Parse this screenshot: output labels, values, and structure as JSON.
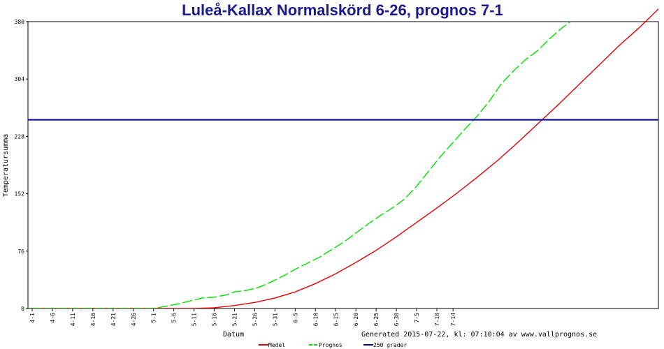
{
  "chart_data": {
    "type": "line",
    "title": "Luleå-Kallax Normalskörd 6-26, prognos 7-1",
    "xlabel": "Datum",
    "ylabel": "Temperatursumma",
    "ylim": [
      0,
      380
    ],
    "y_ticks": [
      "0",
      "76",
      "152",
      "228",
      "304",
      "380"
    ],
    "x_ticks": [
      "4-1",
      "4-6",
      "4-11",
      "4-16",
      "4-21",
      "4-26",
      "5-1",
      "5-6",
      "5-11",
      "5-16",
      "5-21",
      "5-26",
      "5-31",
      "6-5",
      "6-10",
      "6-15",
      "6-20",
      "6-25",
      "6-30",
      "7-5",
      "7-10",
      "7-14"
    ],
    "footer": "Generated 2015-07-22, kl: 07:10:04 av www.vallprognos.se",
    "grid": false,
    "series": [
      {
        "name": "Medel",
        "color": "#e00000",
        "style": "solid",
        "points": [
          [
            0,
            0
          ],
          [
            40,
            0
          ],
          [
            45,
            1
          ],
          [
            50,
            4
          ],
          [
            55,
            8
          ],
          [
            60,
            14
          ],
          [
            65,
            22
          ],
          [
            70,
            33
          ],
          [
            75,
            46
          ],
          [
            80,
            61
          ],
          [
            85,
            77
          ],
          [
            90,
            95
          ],
          [
            95,
            114
          ],
          [
            100,
            133
          ],
          [
            105,
            153
          ],
          [
            110,
            174
          ],
          [
            115,
            196
          ],
          [
            120,
            220
          ],
          [
            125,
            245
          ],
          [
            130,
            270
          ],
          [
            135,
            296
          ],
          [
            140,
            322
          ],
          [
            145,
            348
          ],
          [
            150,
            372
          ],
          [
            155,
            398
          ]
        ]
      },
      {
        "name": "Prognos",
        "color": "#00e000",
        "style": "dashed",
        "points": [
          [
            0,
            0
          ],
          [
            30,
            0
          ],
          [
            33,
            3
          ],
          [
            36,
            6
          ],
          [
            39,
            10
          ],
          [
            42,
            14
          ],
          [
            45,
            15
          ],
          [
            48,
            18
          ],
          [
            50,
            22
          ],
          [
            53,
            24
          ],
          [
            56,
            28
          ],
          [
            59,
            35
          ],
          [
            62,
            43
          ],
          [
            65,
            52
          ],
          [
            68,
            60
          ],
          [
            71,
            68
          ],
          [
            74,
            78
          ],
          [
            77,
            88
          ],
          [
            80,
            100
          ],
          [
            83,
            112
          ],
          [
            86,
            123
          ],
          [
            89,
            133
          ],
          [
            92,
            145
          ],
          [
            95,
            162
          ],
          [
            98,
            182
          ],
          [
            101,
            202
          ],
          [
            104,
            220
          ],
          [
            107,
            238
          ],
          [
            110,
            255
          ],
          [
            113,
            275
          ],
          [
            116,
            298
          ],
          [
            119,
            315
          ],
          [
            122,
            330
          ],
          [
            125,
            342
          ],
          [
            128,
            358
          ],
          [
            131,
            372
          ],
          [
            133,
            380
          ]
        ]
      },
      {
        "name": "250 grader",
        "color": "#0000a0",
        "style": "solid",
        "points": [
          [
            0,
            250
          ],
          [
            157,
            250
          ]
        ]
      }
    ]
  }
}
